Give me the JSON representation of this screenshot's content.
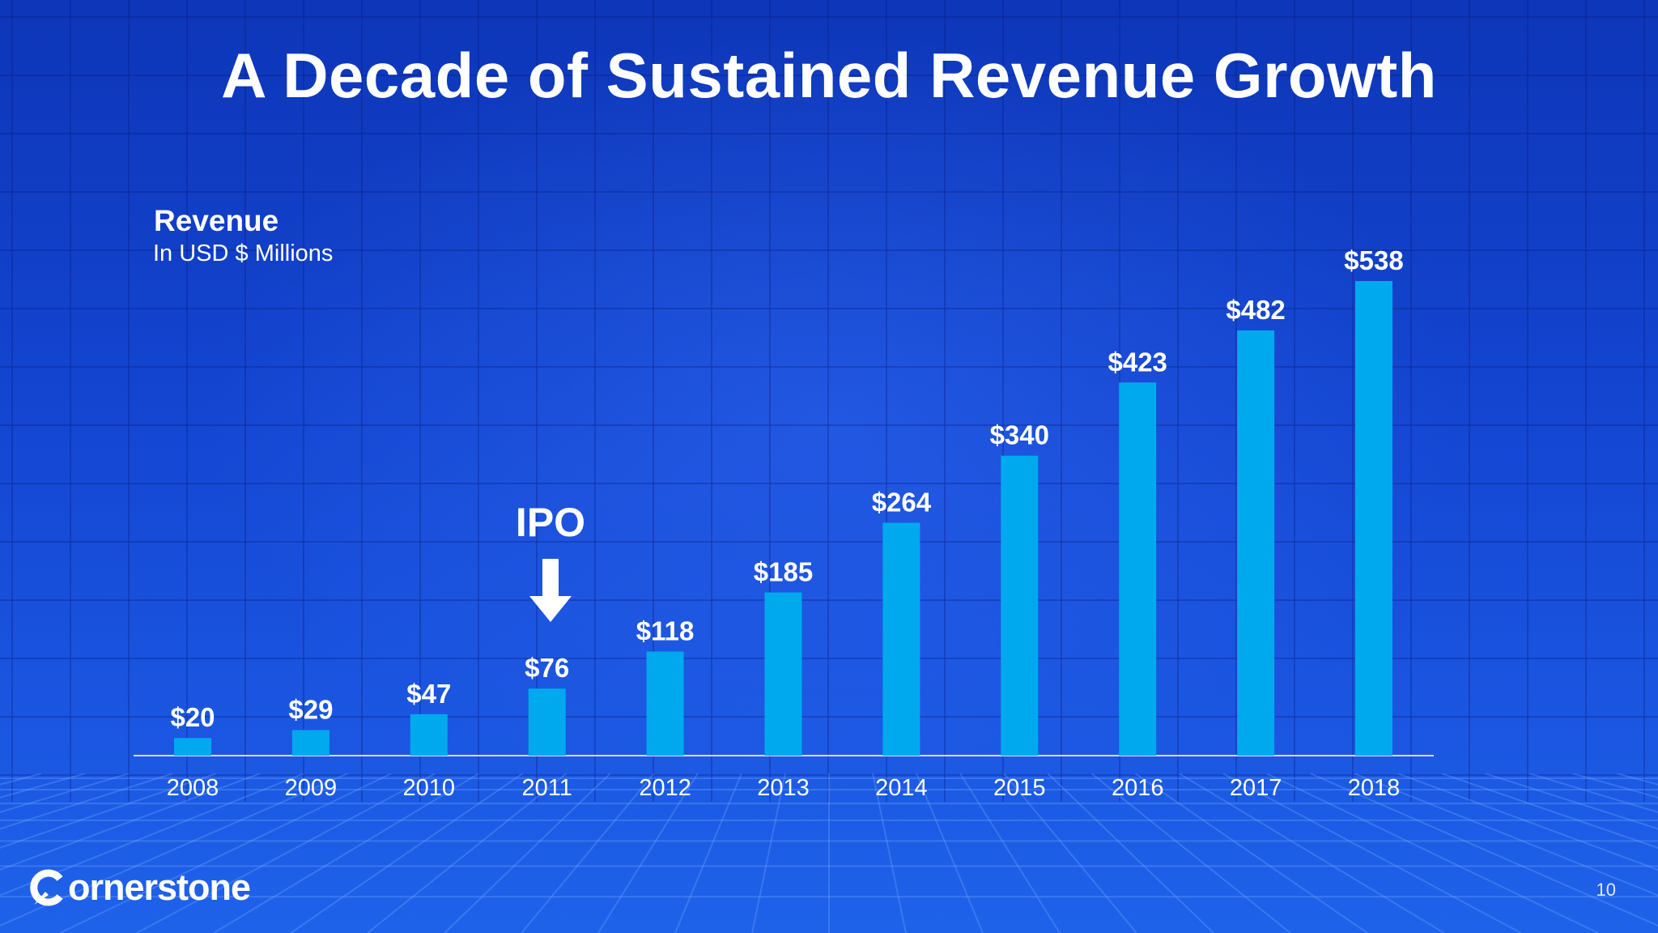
{
  "slide": {
    "title": "A Decade of Sustained Revenue Growth",
    "page_number": "10",
    "logo_text": "ornerstone"
  },
  "annotation": {
    "ipo_label": "IPO",
    "ipo_category": "2011"
  },
  "colors": {
    "bar": "#00a9ee",
    "axis_line": "#cfdcff",
    "text": "#ffffff"
  },
  "chart_data": {
    "type": "bar",
    "title": "Revenue",
    "subtitle": "In USD $ Millions",
    "categories": [
      "2008",
      "2009",
      "2010",
      "2011",
      "2012",
      "2013",
      "2014",
      "2015",
      "2016",
      "2017",
      "2018"
    ],
    "values": [
      20,
      29,
      47,
      76,
      118,
      185,
      264,
      340,
      423,
      482,
      538
    ],
    "data_labels": [
      "$20",
      "$29",
      "$47",
      "$76",
      "$118",
      "$185",
      "$264",
      "$340",
      "$423",
      "$482",
      "$538"
    ],
    "ylim": [
      0,
      538
    ],
    "grid": false,
    "legend": "none"
  }
}
